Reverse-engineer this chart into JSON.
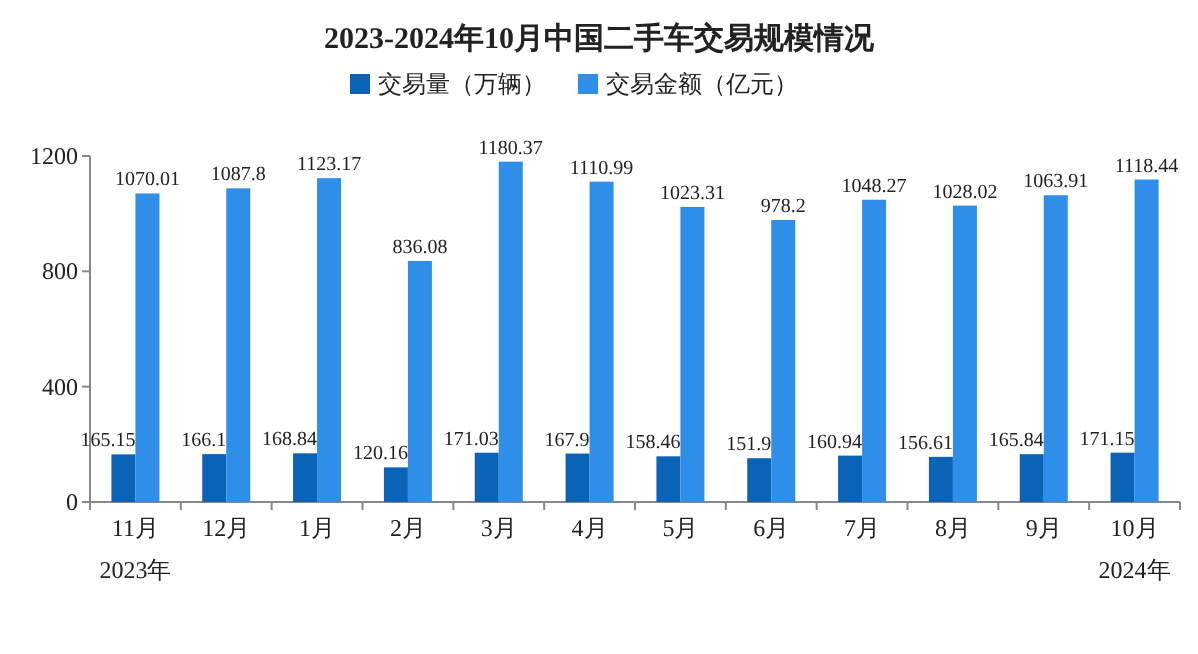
{
  "chart_data": {
    "type": "bar",
    "title": "2023-2024年10月中国二手车交易规模情况",
    "categories": [
      "11月",
      "12月",
      "1月",
      "2月",
      "3月",
      "4月",
      "5月",
      "6月",
      "7月",
      "8月",
      "9月",
      "10月"
    ],
    "series": [
      {
        "name": "交易量（万辆）",
        "color": "#0b63b8",
        "values": [
          165.15,
          166.1,
          168.84,
          120.16,
          171.03,
          167.9,
          158.46,
          151.9,
          160.94,
          156.61,
          165.84,
          171.15
        ]
      },
      {
        "name": "交易金额（亿元）",
        "color": "#2f8ee8",
        "values": [
          1070.01,
          1087.8,
          1123.17,
          836.08,
          1180.37,
          1110.99,
          1023.31,
          978.2,
          1048.27,
          1028.02,
          1063.91,
          1118.44
        ]
      }
    ],
    "ylim": [
      0,
      1200
    ],
    "yticks": [
      0,
      400,
      800,
      1200
    ],
    "data_labels": true,
    "legend": "top",
    "grid": false,
    "annotations": [
      "2023年",
      "2024年"
    ]
  }
}
